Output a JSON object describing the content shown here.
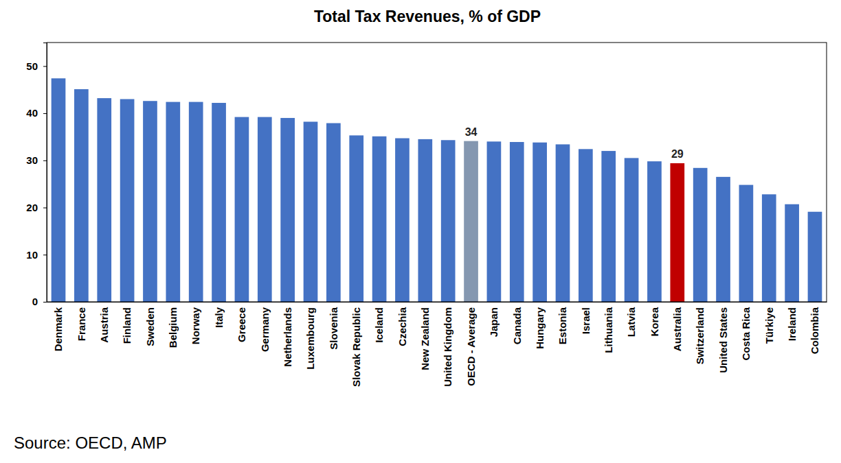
{
  "chart_data": {
    "type": "bar",
    "title": "Total Tax Revenues, % of GDP",
    "categories": [
      "Denmark",
      "France",
      "Austria",
      "Finland",
      "Sweden",
      "Belgium",
      "Norway",
      "Italy",
      "Greece",
      "Germany",
      "Netherlands",
      "Luxembourg",
      "Slovenia",
      "Slovak Republic",
      "Iceland",
      "Czechia",
      "New Zealand",
      "United Kingdom",
      "OECD - Average",
      "Japan",
      "Canada",
      "Hungary",
      "Estonia",
      "Israel",
      "Lithuania",
      "Latvia",
      "Korea",
      "Australia",
      "Switzerland",
      "United States",
      "Costa Rica",
      "Türkiye",
      "Ireland",
      "Colombia"
    ],
    "values": [
      47.4,
      45.1,
      43.2,
      43.0,
      42.6,
      42.4,
      42.4,
      42.2,
      39.2,
      39.2,
      39.0,
      38.2,
      37.9,
      35.3,
      35.1,
      34.7,
      34.5,
      34.3,
      34.1,
      34.0,
      33.9,
      33.8,
      33.4,
      32.4,
      32.0,
      30.5,
      29.8,
      29.4,
      28.4,
      26.5,
      24.8,
      22.8,
      20.7,
      19.1
    ],
    "colors": [
      "#4472c4",
      "#4472c4",
      "#4472c4",
      "#4472c4",
      "#4472c4",
      "#4472c4",
      "#4472c4",
      "#4472c4",
      "#4472c4",
      "#4472c4",
      "#4472c4",
      "#4472c4",
      "#4472c4",
      "#4472c4",
      "#4472c4",
      "#4472c4",
      "#4472c4",
      "#4472c4",
      "#8497b0",
      "#4472c4",
      "#4472c4",
      "#4472c4",
      "#4472c4",
      "#4472c4",
      "#4472c4",
      "#4472c4",
      "#4472c4",
      "#c00000",
      "#4472c4",
      "#4472c4",
      "#4472c4",
      "#4472c4",
      "#4472c4",
      "#4472c4"
    ],
    "annotations": [
      {
        "category": "OECD - Average",
        "label": "34"
      },
      {
        "category": "Australia",
        "label": "29"
      }
    ],
    "ylim": [
      0,
      55
    ],
    "yticks": [
      0,
      10,
      20,
      30,
      40,
      50
    ],
    "grid": false,
    "source": "Source: OECD, AMP"
  }
}
